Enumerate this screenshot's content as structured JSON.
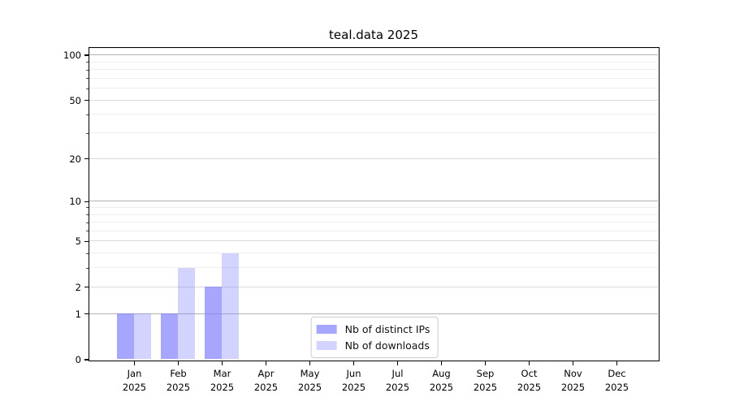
{
  "title": "teal.data 2025",
  "chart_data": {
    "type": "bar",
    "title": "teal.data 2025",
    "categories": [
      "Jan",
      "Feb",
      "Mar",
      "Apr",
      "May",
      "Jun",
      "Jul",
      "Aug",
      "Sep",
      "Oct",
      "Nov",
      "Dec"
    ],
    "year_label": "2025",
    "series": [
      {
        "name": "Nb of distinct IPs",
        "color": "#8080ff",
        "alpha": 0.7,
        "values": [
          1,
          1,
          2,
          0,
          0,
          0,
          0,
          0,
          0,
          0,
          0,
          0
        ]
      },
      {
        "name": "Nb of downloads",
        "color": "#8080ff",
        "alpha": 0.35,
        "values": [
          1,
          3,
          4,
          0,
          0,
          0,
          0,
          0,
          0,
          0,
          0,
          0
        ]
      }
    ],
    "xlabel": "",
    "ylabel": "",
    "y_axis": {
      "scale": "log10(1+v)",
      "ticks": [
        0,
        1,
        2,
        5,
        10,
        20,
        50,
        100
      ],
      "minor_ticks": [
        3,
        4,
        6,
        7,
        8,
        9,
        30,
        40,
        60,
        70,
        80,
        90,
        110
      ],
      "emphasized_gridlines": [
        1,
        10,
        100
      ],
      "max": 112
    },
    "grid": true,
    "legend_position": "lower center",
    "colors": {
      "grid_major": "#d9d9d9",
      "grid_emphasized": "#b3b3b3",
      "grid_minor": "#eeeeee",
      "spine": "#000000",
      "legend_border": "#cccccc"
    }
  }
}
